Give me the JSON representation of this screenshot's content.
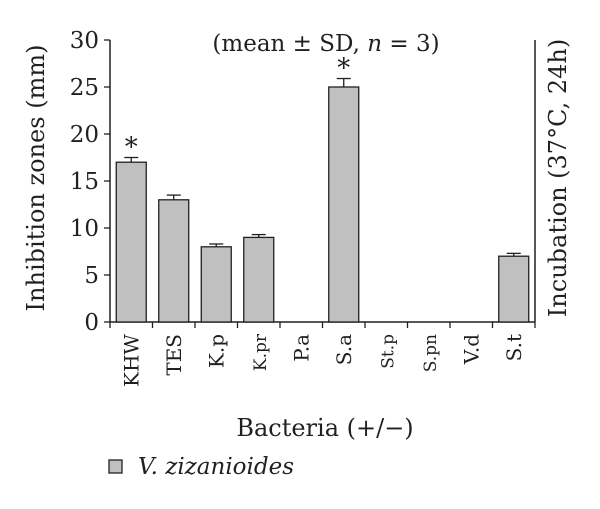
{
  "chart_data": {
    "type": "bar",
    "title": "(mean ± SD, n = 3)",
    "title_parts": {
      "before": "(mean ± SD, ",
      "n": "n",
      "after": " = 3)"
    },
    "xlabel": "Bacteria (+/−)",
    "ylabel": "Inhibition zones (mm)",
    "right_label": "Incubation (37°C, 24h)",
    "ylim": [
      0,
      30
    ],
    "yticks": [
      "0",
      "5",
      "10",
      "15",
      "20",
      "25",
      "30"
    ],
    "categories": [
      "KHW",
      "TES",
      "K.p",
      "K.pr",
      "P.a",
      "S.a",
      "St.p",
      "S.pn",
      "V.d",
      "S.t"
    ],
    "series": [
      {
        "name": "V. zizanioides",
        "values": [
          17,
          13,
          8,
          9,
          0,
          25,
          0,
          0,
          0,
          7
        ],
        "errors": [
          0.5,
          0.5,
          0.3,
          0.3,
          0,
          0.9,
          0,
          0,
          0,
          0.3
        ],
        "color": "#c0c0c0"
      }
    ],
    "significance_markers": [
      {
        "category": "KHW",
        "label": "*"
      },
      {
        "category": "S.a",
        "label": "*"
      }
    ],
    "grid": false,
    "legend_position": "bottom-left"
  }
}
